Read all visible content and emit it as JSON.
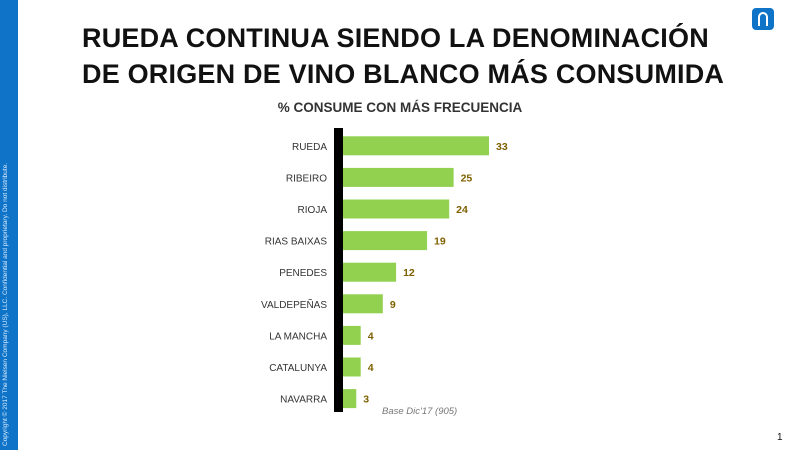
{
  "slide": {
    "title_line1": "RUEDA CONTINUA SIENDO LA DENOMINACIÓN",
    "title_line2": "DE ORIGEN DE VINO BLANCO MÁS CONSUMIDA",
    "sidebar_text": "Copyright © 2017 The Nielsen Company (US), LLC. Confidential and proprietary. Do not distribute.",
    "base_note": "Base Dic'17 (905)",
    "page_number": "1",
    "brand_color": "#0f74c8"
  },
  "chart_data": {
    "type": "bar",
    "orientation": "horizontal",
    "title": "% CONSUME CON MÁS FRECUENCIA",
    "categories": [
      "RUEDA",
      "RIBEIRO",
      "RIOJA",
      "RIAS BAIXAS",
      "PENEDES",
      "VALDEPEÑAS",
      "LA MANCHA",
      "CATALUNYA",
      "NAVARRA"
    ],
    "values": [
      33,
      25,
      24,
      19,
      12,
      9,
      4,
      4,
      3
    ],
    "bar_color": "#92d050",
    "axis_color": "#000000",
    "value_label_color": "#7f6000"
  }
}
